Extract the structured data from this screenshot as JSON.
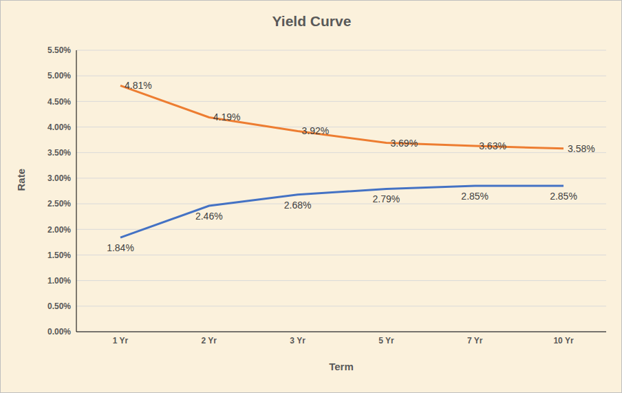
{
  "chart_data": {
    "type": "line",
    "title": "Yield Curve",
    "x_label": "Term",
    "y_label": "Rate",
    "categories": [
      "1 Yr",
      "2 Yr",
      "3 Yr",
      "5 Yr",
      "7 Yr",
      "10 Yr"
    ],
    "series": [
      {
        "color": "#ed7d31",
        "values": [
          4.81,
          4.19,
          3.92,
          3.69,
          3.63,
          3.58
        ],
        "value_labels": [
          "4.81%",
          "4.19%",
          "3.92%",
          "3.69%",
          "3.63%",
          "3.58%"
        ]
      },
      {
        "color": "#4472c4",
        "values": [
          1.84,
          2.46,
          2.68,
          2.79,
          2.85,
          2.85
        ],
        "value_labels": [
          "1.84%",
          "2.46%",
          "2.68%",
          "2.79%",
          "2.85%",
          "2.85%"
        ]
      }
    ],
    "ylim": [
      0,
      5.5
    ],
    "yticks": [
      {
        "value": 0,
        "label": "0.00%"
      },
      {
        "value": 0.5,
        "label": "0.50%"
      },
      {
        "value": 1,
        "label": "1.00%"
      },
      {
        "value": 1.5,
        "label": "1.50%"
      },
      {
        "value": 2,
        "label": "2.00%"
      },
      {
        "value": 2.5,
        "label": "2.50%"
      },
      {
        "value": 3,
        "label": "3.00%"
      },
      {
        "value": 3.5,
        "label": "3.50%"
      },
      {
        "value": 4,
        "label": "4.00%"
      },
      {
        "value": 4.5,
        "label": "4.50%"
      },
      {
        "value": 5,
        "label": "5.00%"
      },
      {
        "value": 5.5,
        "label": "5.50%"
      }
    ],
    "grid": true,
    "data_labels": true
  }
}
